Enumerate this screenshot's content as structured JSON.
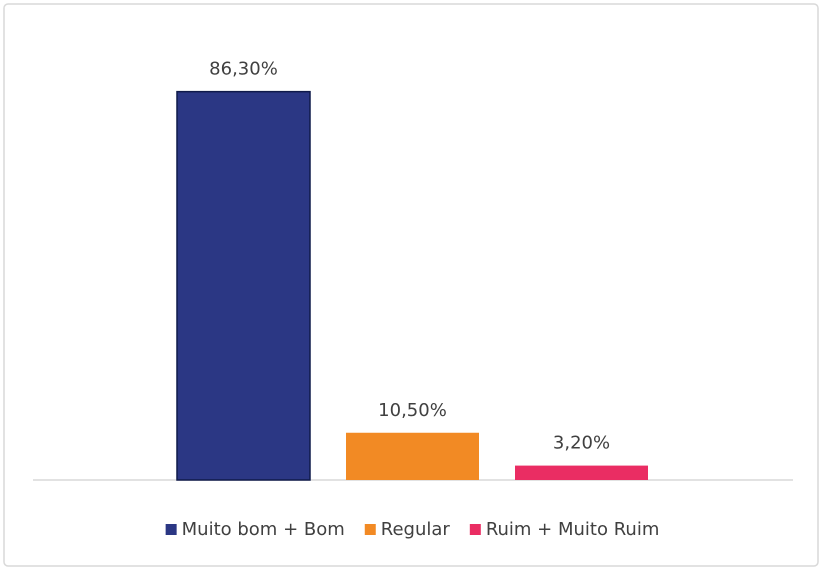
{
  "chart_data": {
    "type": "bar",
    "categories": [
      null
    ],
    "series": [
      {
        "name": "Muito bom + Bom",
        "color": "#2b3784",
        "values": [
          86.3
        ],
        "value_labels": [
          "86,30%"
        ]
      },
      {
        "name": "Regular",
        "color": "#f28a24",
        "values": [
          10.5
        ],
        "value_labels": [
          "10,50%"
        ]
      },
      {
        "name": "Ruim + Muito Ruim",
        "color": "#ea2d63",
        "values": [
          3.2
        ],
        "value_labels": [
          "3,20%"
        ]
      }
    ],
    "ylim": [
      0,
      100
    ],
    "legend": "bottom"
  }
}
